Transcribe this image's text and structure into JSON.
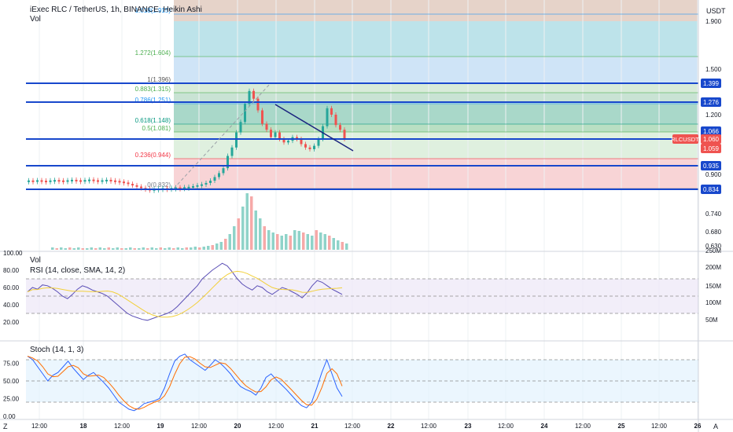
{
  "header": {
    "symbol_line": "iExec RLC / TetherUS, 1h, BINANCE, Heikin Ashi",
    "vol_label": "Vol"
  },
  "rsi_pane": {
    "vol_label": "Vol",
    "rsi_label": "RSI (14, close, SMA, 14, 2)"
  },
  "stoch_pane": {
    "label": "Stoch (14, 1, 3)"
  },
  "axis": {
    "unit": "USDT",
    "corner_left": "Z",
    "corner_right": "A"
  },
  "colors": {
    "up": "#26a69a",
    "down": "#ef5350",
    "level_line": "#1848cc",
    "rsi_line": "#5b4fb6",
    "rsi_ma": "#f2d03a",
    "stoch_k": "#2962ff",
    "stoch_d": "#ff6d00"
  },
  "chart_data": [
    {
      "type": "candlestick",
      "price_ticks": [
        "1.900",
        "1.500",
        "1.200",
        "0.900",
        "0.740",
        "0.680",
        "0.630"
      ],
      "time_ticks": [
        "12:00",
        "18",
        "12:00",
        "19",
        "12:00",
        "20",
        "12:00",
        "21",
        "12:00",
        "22",
        "12:00",
        "23",
        "12:00",
        "24",
        "12:00",
        "25",
        "12:00",
        "26"
      ],
      "fib_levels": [
        {
          "label": "1.618(1.915)",
          "color": "#2196f3"
        },
        {
          "label": "1.272(1.604)",
          "color": "#4caf50"
        },
        {
          "label": "1(1.396)",
          "color": "#555555"
        },
        {
          "label": "0.883(1.315)",
          "color": "#4caf50"
        },
        {
          "label": "0.786(1.251)",
          "color": "#2196f3"
        },
        {
          "label": "0.618(1.148)",
          "color": "#089981"
        },
        {
          "label": "0.5(1.081)",
          "color": "#4caf50"
        },
        {
          "label": "0.236(0.944)",
          "color": "#f23645"
        },
        {
          "label": "0(0.832)",
          "color": "#787b86"
        }
      ],
      "horizontal_lines": [
        "1.399",
        "1.276",
        "1.066",
        "0.935",
        "0.834"
      ],
      "price_labels": [
        {
          "text": "1.399",
          "color": "#1848cc"
        },
        {
          "text": "1.276",
          "color": "#1848cc"
        },
        {
          "text": "1.066",
          "color": "#1848cc"
        },
        {
          "text": "1.060",
          "color": "#ef5350"
        },
        {
          "text": "1.059",
          "color": "#ef5350"
        },
        {
          "text": "0.935",
          "color": "#1848cc"
        },
        {
          "text": "0.834",
          "color": "#1848cc"
        }
      ],
      "symbol_tag": "RLCUSDT",
      "candles_approx": [
        0.873,
        0.871,
        0.874,
        0.872,
        0.87,
        0.873,
        0.875,
        0.873,
        0.871,
        0.874,
        0.876,
        0.874,
        0.872,
        0.875,
        0.877,
        0.874,
        0.872,
        0.874,
        0.876,
        0.873,
        0.871,
        0.868,
        0.864,
        0.858,
        0.852,
        0.846,
        0.84,
        0.836,
        0.834,
        0.835,
        0.837,
        0.839,
        0.838,
        0.84,
        0.842,
        0.841,
        0.843,
        0.845,
        0.848,
        0.852,
        0.856,
        0.862,
        0.872,
        0.888,
        0.905,
        0.925,
        0.96,
        1.01,
        1.08,
        1.16,
        1.25,
        1.33,
        1.29,
        1.22,
        1.15,
        1.1,
        1.07,
        1.08,
        1.06,
        1.04,
        1.05,
        1.07,
        1.06,
        1.03,
        1.01,
        1.0,
        1.02,
        1.06,
        1.13,
        1.23,
        1.2,
        1.14,
        1.1,
        1.06
      ]
    },
    {
      "type": "bar",
      "name": "Vol",
      "vol_ticks": [
        "250M",
        "200M",
        "150M",
        "100M",
        "50M"
      ]
    },
    {
      "type": "line",
      "name": "RSI (14, close, SMA, 14, 2)",
      "y_ticks": [
        "100.00",
        "80.00",
        "60.00",
        "40.00",
        "20.00"
      ],
      "bands": [
        70,
        30,
        50
      ],
      "rsi": [
        55,
        60,
        58,
        63,
        62,
        59,
        55,
        50,
        47,
        52,
        58,
        62,
        60,
        57,
        55,
        53,
        50,
        45,
        40,
        35,
        30,
        27,
        25,
        23,
        22,
        24,
        26,
        28,
        30,
        33,
        38,
        44,
        50,
        56,
        62,
        70,
        75,
        80,
        84,
        88,
        85,
        78,
        70,
        64,
        60,
        57,
        62,
        60,
        55,
        52,
        56,
        60,
        58,
        55,
        52,
        48,
        54,
        62,
        68,
        66,
        62,
        58,
        55,
        52
      ]
    },
    {
      "type": "line",
      "name": "Stoch (14, 1, 3)",
      "y_ticks": [
        "75.00",
        "50.00",
        "25.00",
        "0.00"
      ],
      "bands": [
        80,
        20,
        50
      ],
      "k": [
        85,
        80,
        70,
        60,
        50,
        58,
        62,
        70,
        78,
        68,
        60,
        52,
        58,
        62,
        55,
        48,
        40,
        30,
        20,
        15,
        10,
        8,
        12,
        18,
        20,
        22,
        25,
        40,
        60,
        78,
        85,
        88,
        80,
        75,
        70,
        65,
        72,
        80,
        75,
        68,
        60,
        50,
        42,
        38,
        35,
        30,
        40,
        55,
        60,
        52,
        45,
        38,
        30,
        22,
        15,
        12,
        20,
        40,
        62,
        80,
        60,
        40,
        28
      ]
    }
  ]
}
